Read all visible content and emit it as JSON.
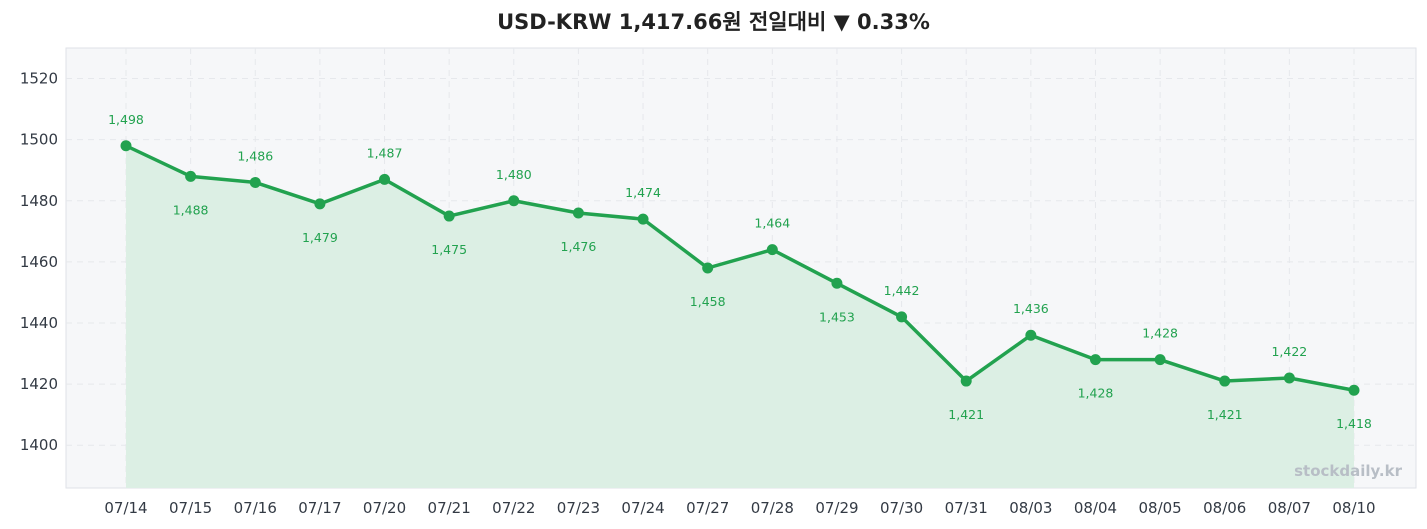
{
  "title": "USD-KRW  1,417.66원  전일대비 ▼ 0.33%",
  "watermark": "stockdaily.kr",
  "colors": {
    "line": "#22a24f",
    "area": "#dcefe4",
    "plot_bg": "#f6f7f9",
    "grid": "#e6e8ec",
    "label": "#22a24f"
  },
  "chart_data": {
    "type": "line",
    "title": "USD-KRW  1,417.66원  전일대비 ▼ 0.33%",
    "xlabel": "",
    "ylabel": "",
    "categories": [
      "07/14",
      "07/15",
      "07/16",
      "07/17",
      "07/20",
      "07/21",
      "07/22",
      "07/23",
      "07/24",
      "07/27",
      "07/28",
      "07/29",
      "07/30",
      "07/31",
      "08/03",
      "08/04",
      "08/05",
      "08/06",
      "08/07",
      "08/10"
    ],
    "values": [
      1498,
      1488,
      1486,
      1479,
      1487,
      1475,
      1480,
      1476,
      1474,
      1458,
      1464,
      1453,
      1442,
      1421,
      1436,
      1428,
      1428,
      1421,
      1422,
      1418
    ],
    "value_labels": [
      "1,498",
      "1,488",
      "1,486",
      "1,479",
      "1,487",
      "1,475",
      "1,480",
      "1,476",
      "1,474",
      "1,458",
      "1,464",
      "1,453",
      "1,442",
      "1,421",
      "1,436",
      "1,428",
      "1,428",
      "1,421",
      "1,422",
      "1,418"
    ],
    "label_position": [
      "above",
      "below",
      "above",
      "below",
      "above",
      "below",
      "above",
      "below",
      "above",
      "below",
      "above",
      "below",
      "above",
      "below",
      "above",
      "below",
      "above",
      "below",
      "above",
      "below"
    ],
    "ylim": [
      1386,
      1530
    ],
    "yticks": [
      1400,
      1420,
      1440,
      1460,
      1480,
      1500,
      1520
    ],
    "grid": true,
    "area_fill": true
  }
}
